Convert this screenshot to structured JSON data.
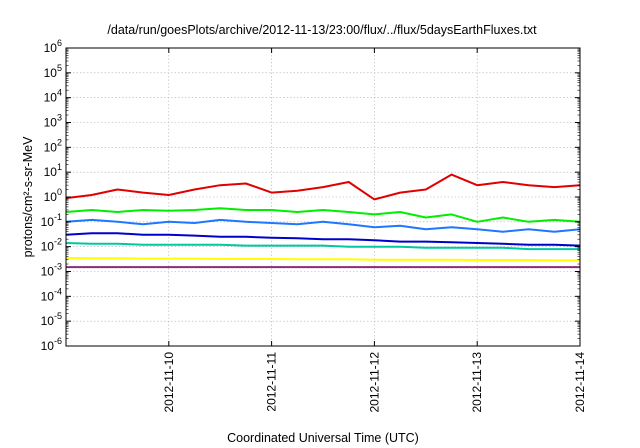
{
  "chart_data": {
    "type": "line",
    "title": "/data/run/goesPlots/archive/2012-11-13/23:00/flux/../flux/5daysEarthFluxes.txt",
    "xlabel": "Coordinated Universal Time (UTC)",
    "ylabel": "protons/cm²-s-sr-MeV",
    "y_scale": "log",
    "ylim": [
      1e-06,
      1000000.0
    ],
    "xlim": [
      "2012-11-09",
      "2012-11-14"
    ],
    "y_ticks": [
      {
        "exp": "-6",
        "value": 1e-06
      },
      {
        "exp": "-5",
        "value": 1e-05
      },
      {
        "exp": "-4",
        "value": 0.0001
      },
      {
        "exp": "-3",
        "value": 0.001
      },
      {
        "exp": "-2",
        "value": 0.01
      },
      {
        "exp": "-1",
        "value": 0.1
      },
      {
        "exp": "0",
        "value": 1
      },
      {
        "exp": "1",
        "value": 10
      },
      {
        "exp": "2",
        "value": 100
      },
      {
        "exp": "3",
        "value": 1000
      },
      {
        "exp": "4",
        "value": 10000
      },
      {
        "exp": "5",
        "value": 100000
      },
      {
        "exp": "6",
        "value": 1000000
      }
    ],
    "x_ticks": [
      "2012-11-10",
      "2012-11-11",
      "2012-11-12",
      "2012-11-13",
      "2012-11-14"
    ],
    "grid": true,
    "legend": "none",
    "series": [
      {
        "color": "#e00000",
        "x": [
          "2012-11-09 00:00",
          "2012-11-09 06:00",
          "2012-11-09 12:00",
          "2012-11-09 18:00",
          "2012-11-10 00:00",
          "2012-11-10 06:00",
          "2012-11-10 12:00",
          "2012-11-10 18:00",
          "2012-11-11 00:00",
          "2012-11-11 06:00",
          "2012-11-11 12:00",
          "2012-11-11 18:00",
          "2012-11-12 00:00",
          "2012-11-12 06:00",
          "2012-11-12 12:00",
          "2012-11-12 18:00",
          "2012-11-13 00:00",
          "2012-11-13 06:00",
          "2012-11-13 12:00",
          "2012-11-13 18:00",
          "2012-11-14 00:00"
        ],
        "values": [
          0.9,
          1.2,
          2.0,
          1.5,
          1.2,
          2.0,
          3.0,
          3.5,
          1.5,
          1.8,
          2.5,
          4.0,
          0.8,
          1.5,
          2.0,
          8.0,
          3.0,
          4.0,
          3.0,
          2.5,
          3.0
        ]
      },
      {
        "color": "#00ee00",
        "x": [
          "2012-11-09 00:00",
          "2012-11-09 06:00",
          "2012-11-09 12:00",
          "2012-11-09 18:00",
          "2012-11-10 00:00",
          "2012-11-10 06:00",
          "2012-11-10 12:00",
          "2012-11-10 18:00",
          "2012-11-11 00:00",
          "2012-11-11 06:00",
          "2012-11-11 12:00",
          "2012-11-11 18:00",
          "2012-11-12 00:00",
          "2012-11-12 06:00",
          "2012-11-12 12:00",
          "2012-11-12 18:00",
          "2012-11-13 00:00",
          "2012-11-13 06:00",
          "2012-11-13 12:00",
          "2012-11-13 18:00",
          "2012-11-14 00:00"
        ],
        "values": [
          0.25,
          0.3,
          0.25,
          0.3,
          0.28,
          0.3,
          0.35,
          0.3,
          0.3,
          0.25,
          0.3,
          0.25,
          0.2,
          0.25,
          0.15,
          0.2,
          0.1,
          0.15,
          0.1,
          0.12,
          0.1
        ]
      },
      {
        "color": "#1e78ff",
        "x": [
          "2012-11-09 00:00",
          "2012-11-09 06:00",
          "2012-11-09 12:00",
          "2012-11-09 18:00",
          "2012-11-10 00:00",
          "2012-11-10 06:00",
          "2012-11-10 12:00",
          "2012-11-10 18:00",
          "2012-11-11 00:00",
          "2012-11-11 06:00",
          "2012-11-11 12:00",
          "2012-11-11 18:00",
          "2012-11-12 00:00",
          "2012-11-12 06:00",
          "2012-11-12 12:00",
          "2012-11-12 18:00",
          "2012-11-13 00:00",
          "2012-11-13 06:00",
          "2012-11-13 12:00",
          "2012-11-13 18:00",
          "2012-11-14 00:00"
        ],
        "values": [
          0.1,
          0.12,
          0.1,
          0.08,
          0.1,
          0.09,
          0.12,
          0.1,
          0.09,
          0.08,
          0.1,
          0.08,
          0.06,
          0.07,
          0.05,
          0.06,
          0.05,
          0.04,
          0.05,
          0.04,
          0.05
        ]
      },
      {
        "color": "#0000cc",
        "x": [
          "2012-11-09 00:00",
          "2012-11-09 06:00",
          "2012-11-09 12:00",
          "2012-11-09 18:00",
          "2012-11-10 00:00",
          "2012-11-10 06:00",
          "2012-11-10 12:00",
          "2012-11-10 18:00",
          "2012-11-11 00:00",
          "2012-11-11 06:00",
          "2012-11-11 12:00",
          "2012-11-11 18:00",
          "2012-11-12 00:00",
          "2012-11-12 06:00",
          "2012-11-12 12:00",
          "2012-11-12 18:00",
          "2012-11-13 00:00",
          "2012-11-13 06:00",
          "2012-11-13 12:00",
          "2012-11-13 18:00",
          "2012-11-14 00:00"
        ],
        "values": [
          0.03,
          0.035,
          0.035,
          0.03,
          0.03,
          0.028,
          0.025,
          0.025,
          0.023,
          0.022,
          0.02,
          0.02,
          0.018,
          0.016,
          0.016,
          0.015,
          0.014,
          0.013,
          0.012,
          0.012,
          0.011
        ]
      },
      {
        "color": "#00c8a0",
        "x": [
          "2012-11-09 00:00",
          "2012-11-09 06:00",
          "2012-11-09 12:00",
          "2012-11-09 18:00",
          "2012-11-10 00:00",
          "2012-11-10 06:00",
          "2012-11-10 12:00",
          "2012-11-10 18:00",
          "2012-11-11 00:00",
          "2012-11-11 06:00",
          "2012-11-11 12:00",
          "2012-11-11 18:00",
          "2012-11-12 00:00",
          "2012-11-12 06:00",
          "2012-11-12 12:00",
          "2012-11-12 18:00",
          "2012-11-13 00:00",
          "2012-11-13 06:00",
          "2012-11-13 12:00",
          "2012-11-13 18:00",
          "2012-11-14 00:00"
        ],
        "values": [
          0.014,
          0.013,
          0.013,
          0.012,
          0.012,
          0.012,
          0.012,
          0.011,
          0.011,
          0.011,
          0.011,
          0.01,
          0.01,
          0.01,
          0.009,
          0.009,
          0.009,
          0.009,
          0.008,
          0.008,
          0.008
        ]
      },
      {
        "color": "#ffff00",
        "x": [
          "2012-11-09 00:00",
          "2012-11-09 06:00",
          "2012-11-09 12:00",
          "2012-11-09 18:00",
          "2012-11-10 00:00",
          "2012-11-10 06:00",
          "2012-11-10 12:00",
          "2012-11-10 18:00",
          "2012-11-11 00:00",
          "2012-11-11 06:00",
          "2012-11-11 12:00",
          "2012-11-11 18:00",
          "2012-11-12 00:00",
          "2012-11-12 06:00",
          "2012-11-12 12:00",
          "2012-11-12 18:00",
          "2012-11-13 00:00",
          "2012-11-13 06:00",
          "2012-11-13 12:00",
          "2012-11-13 18:00",
          "2012-11-14 00:00"
        ],
        "values": [
          0.0035,
          0.0034,
          0.0034,
          0.0033,
          0.0033,
          0.0033,
          0.0032,
          0.0032,
          0.0032,
          0.0031,
          0.0031,
          0.0031,
          0.003,
          0.003,
          0.003,
          0.003,
          0.0029,
          0.0029,
          0.0029,
          0.0028,
          0.0028
        ]
      },
      {
        "color": "#8b2a7a",
        "x": [
          "2012-11-09 00:00",
          "2012-11-09 06:00",
          "2012-11-09 12:00",
          "2012-11-09 18:00",
          "2012-11-10 00:00",
          "2012-11-10 06:00",
          "2012-11-10 12:00",
          "2012-11-10 18:00",
          "2012-11-11 00:00",
          "2012-11-11 06:00",
          "2012-11-11 12:00",
          "2012-11-11 18:00",
          "2012-11-12 00:00",
          "2012-11-12 06:00",
          "2012-11-12 12:00",
          "2012-11-12 18:00",
          "2012-11-13 00:00",
          "2012-11-13 06:00",
          "2012-11-13 12:00",
          "2012-11-13 18:00",
          "2012-11-14 00:00"
        ],
        "values": [
          0.0015,
          0.0015,
          0.0015,
          0.0015,
          0.0015,
          0.0015,
          0.0015,
          0.0015,
          0.0015,
          0.0015,
          0.0015,
          0.0015,
          0.0015,
          0.0015,
          0.0015,
          0.0015,
          0.0015,
          0.0015,
          0.0015,
          0.0015,
          0.0015
        ]
      }
    ]
  }
}
